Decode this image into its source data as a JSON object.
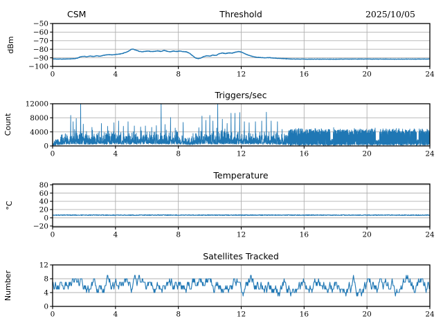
{
  "colors": {
    "line": "#1f77b4",
    "grid": "#b0b0b0",
    "spine": "#000000",
    "text": "#000000",
    "background": "#ffffff"
  },
  "chart_data": [
    {
      "type": "line",
      "title": "Threshold",
      "title_left": "CSM",
      "title_right": "2025/10/05",
      "ylabel": "dBm",
      "xlabel": "",
      "xlim": [
        0,
        24
      ],
      "ylim": [
        -100,
        -50
      ],
      "xticks": [
        0,
        4,
        8,
        12,
        16,
        20,
        24
      ],
      "yticks": [
        -50,
        -60,
        -70,
        -80,
        -90,
        -100
      ],
      "grid": true,
      "series": [
        {
          "name": "threshold-dbm",
          "style": "trend_noise",
          "noise": 0.25,
          "line_width": 1.4,
          "seed": 101,
          "samples": 1500,
          "points": [
            [
              0,
              -91.3
            ],
            [
              0.8,
              -91.4
            ],
            [
              1.4,
              -91.0
            ],
            [
              1.6,
              -90.2
            ],
            [
              1.8,
              -88.6
            ],
            [
              2.0,
              -88.2
            ],
            [
              2.2,
              -88.8
            ],
            [
              2.4,
              -87.9
            ],
            [
              2.6,
              -88.4
            ],
            [
              2.8,
              -87.6
            ],
            [
              3.0,
              -88.3
            ],
            [
              3.2,
              -87.2
            ],
            [
              3.4,
              -86.6
            ],
            [
              3.6,
              -86.2
            ],
            [
              3.8,
              -86.6
            ],
            [
              4.0,
              -86.0
            ],
            [
              4.2,
              -85.7
            ],
            [
              4.4,
              -85.2
            ],
            [
              4.6,
              -84.0
            ],
            [
              4.8,
              -82.6
            ],
            [
              5.0,
              -80.2
            ],
            [
              5.1,
              -79.7
            ],
            [
              5.3,
              -81.0
            ],
            [
              5.5,
              -82.4
            ],
            [
              5.7,
              -82.9
            ],
            [
              5.9,
              -82.4
            ],
            [
              6.1,
              -82.0
            ],
            [
              6.3,
              -82.8
            ],
            [
              6.5,
              -82.3
            ],
            [
              6.7,
              -81.9
            ],
            [
              6.9,
              -82.6
            ],
            [
              7.1,
              -81.3
            ],
            [
              7.3,
              -82.4
            ],
            [
              7.5,
              -82.9
            ],
            [
              7.7,
              -82.1
            ],
            [
              7.9,
              -82.6
            ],
            [
              8.1,
              -82.1
            ],
            [
              8.3,
              -82.7
            ],
            [
              8.5,
              -82.9
            ],
            [
              8.7,
              -84.5
            ],
            [
              8.9,
              -87.5
            ],
            [
              9.1,
              -90.2
            ],
            [
              9.25,
              -91.0
            ],
            [
              9.4,
              -90.4
            ],
            [
              9.6,
              -88.6
            ],
            [
              9.8,
              -87.6
            ],
            [
              10.0,
              -88.1
            ],
            [
              10.2,
              -86.8
            ],
            [
              10.4,
              -87.2
            ],
            [
              10.6,
              -85.2
            ],
            [
              10.8,
              -84.3
            ],
            [
              11.0,
              -85.1
            ],
            [
              11.2,
              -84.2
            ],
            [
              11.4,
              -84.6
            ],
            [
              11.6,
              -83.6
            ],
            [
              11.8,
              -82.7
            ],
            [
              12.0,
              -83.2
            ],
            [
              12.3,
              -85.8
            ],
            [
              12.6,
              -87.8
            ],
            [
              12.9,
              -89.2
            ],
            [
              13.2,
              -89.6
            ],
            [
              13.5,
              -90.0
            ],
            [
              13.8,
              -89.8
            ],
            [
              14.1,
              -90.3
            ],
            [
              14.4,
              -90.6
            ],
            [
              14.8,
              -91.0
            ],
            [
              15.2,
              -91.4
            ],
            [
              16,
              -91.5
            ],
            [
              18,
              -91.5
            ],
            [
              20,
              -91.4
            ],
            [
              22,
              -91.5
            ],
            [
              24,
              -91.4
            ]
          ]
        }
      ]
    },
    {
      "type": "line",
      "title": "Triggers/sec",
      "ylabel": "Count",
      "xlabel": "",
      "xlim": [
        0,
        24
      ],
      "ylim": [
        0,
        12000
      ],
      "xticks": [
        0,
        4,
        8,
        12,
        16,
        20,
        24
      ],
      "yticks": [
        0,
        4000,
        8000,
        12000
      ],
      "grid": true,
      "series": [
        {
          "name": "triggers-count",
          "style": "spiky",
          "seed": 202,
          "line_width": 0.9,
          "baseline_points": [
            [
              0,
              700
            ],
            [
              0.2,
              1000
            ],
            [
              0.5,
              1500
            ],
            [
              0.8,
              1900
            ],
            [
              1.0,
              2100
            ],
            [
              1.5,
              2400
            ],
            [
              2,
              2200
            ],
            [
              3,
              2100
            ],
            [
              4,
              2300
            ],
            [
              5,
              2200
            ],
            [
              6,
              2300
            ],
            [
              7,
              2400
            ],
            [
              8,
              2200
            ],
            [
              8.7,
              1500
            ],
            [
              9,
              1800
            ],
            [
              10,
              2400
            ],
            [
              11,
              2500
            ],
            [
              12,
              2300
            ],
            [
              13,
              2200
            ],
            [
              14,
              2100
            ],
            [
              14.9,
              1600
            ],
            [
              15.0,
              1800
            ]
          ],
          "spikes": [
            [
              1.15,
              8700
            ],
            [
              1.3,
              6900
            ],
            [
              1.5,
              7800
            ],
            [
              1.78,
              12400
            ],
            [
              1.95,
              6200
            ],
            [
              2.5,
              5300
            ],
            [
              3.1,
              6400
            ],
            [
              3.5,
              5600
            ],
            [
              3.9,
              6600
            ],
            [
              4.2,
              7100
            ],
            [
              4.5,
              5600
            ],
            [
              4.8,
              6900
            ],
            [
              5.2,
              5700
            ],
            [
              5.6,
              5400
            ],
            [
              5.9,
              5700
            ],
            [
              6.3,
              5300
            ],
            [
              6.6,
              5800
            ],
            [
              6.9,
              12400
            ],
            [
              7.15,
              6100
            ],
            [
              7.5,
              8100
            ],
            [
              7.8,
              5100
            ],
            [
              8.3,
              6700
            ],
            [
              9.3,
              5200
            ],
            [
              9.5,
              8500
            ],
            [
              9.75,
              7300
            ],
            [
              10.0,
              8700
            ],
            [
              10.2,
              7100
            ],
            [
              10.5,
              12100
            ],
            [
              10.8,
              7600
            ],
            [
              11.1,
              6400
            ],
            [
              11.35,
              9300
            ],
            [
              11.6,
              9300
            ],
            [
              11.9,
              9500
            ],
            [
              12.2,
              6900
            ],
            [
              12.5,
              6600
            ],
            [
              12.9,
              6900
            ],
            [
              13.3,
              7100
            ],
            [
              13.6,
              9600
            ],
            [
              13.9,
              7100
            ],
            [
              14.3,
              6900
            ],
            [
              14.6,
              4700
            ]
          ],
          "band": {
            "x0": 15.0,
            "x1": 24.0,
            "low": 500,
            "high": 4800,
            "dip_high": 1600,
            "dips": [
              [
                17.65,
                17.85
              ],
              [
                20.55,
                20.8
              ],
              [
                23.15,
                23.3
              ]
            ]
          }
        }
      ]
    },
    {
      "type": "line",
      "title": "Temperature",
      "ylabel": "°C",
      "xlabel": "",
      "xlim": [
        0,
        24
      ],
      "ylim": [
        -22,
        82
      ],
      "xticks": [
        0,
        4,
        8,
        12,
        16,
        20,
        24
      ],
      "yticks": [
        80,
        60,
        40,
        20,
        0,
        -20
      ],
      "grid": true,
      "series": [
        {
          "name": "temperature-c",
          "style": "trend_noise",
          "noise": 0.9,
          "line_width": 1.2,
          "seed": 303,
          "samples": 1500,
          "points": [
            [
              0,
              6.5
            ],
            [
              24,
              6.5
            ]
          ]
        }
      ]
    },
    {
      "type": "line",
      "title": "Satellites Tracked",
      "ylabel": "Number",
      "xlabel": "",
      "xlim": [
        0,
        24
      ],
      "ylim": [
        0,
        12
      ],
      "xticks": [
        0,
        4,
        8,
        12,
        16,
        20,
        24
      ],
      "yticks": [
        0,
        4,
        8,
        12
      ],
      "grid": true,
      "series": [
        {
          "name": "satellites-tracked",
          "style": "integer_walk",
          "seed": 404,
          "min": 2,
          "max": 9,
          "start": 6,
          "step_hours": 0.03,
          "line_width": 1.1,
          "mean_points": [
            [
              0,
              6
            ],
            [
              3,
              6.3
            ],
            [
              6,
              6.0
            ],
            [
              9,
              6.3
            ],
            [
              12,
              5.8
            ],
            [
              15,
              5.6
            ],
            [
              18,
              5.8
            ],
            [
              21,
              6.0
            ],
            [
              24,
              5.8
            ]
          ]
        }
      ]
    }
  ]
}
